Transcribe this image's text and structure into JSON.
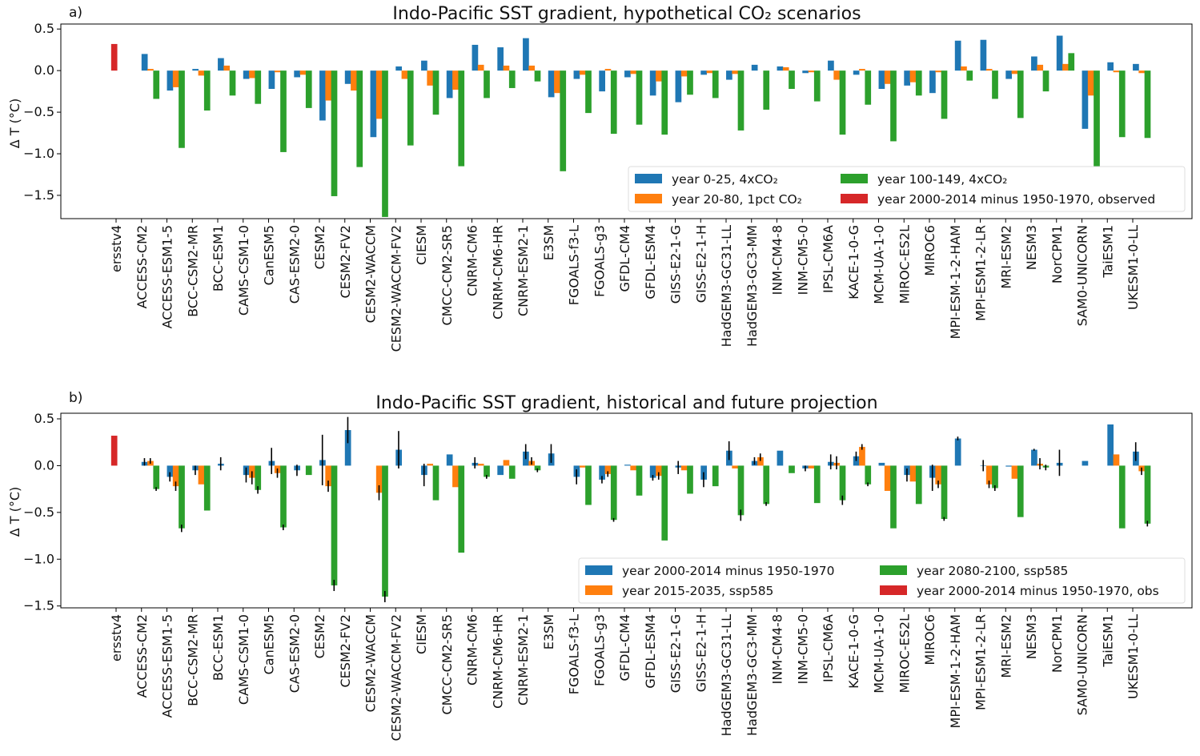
{
  "chart_data": [
    {
      "type": "bar",
      "panel_label": "a)",
      "title": "Indo-Pacific SST gradient, hypothetical CO₂ scenarios",
      "ylabel": "Δ T (°C)",
      "xlabel": "",
      "ylim": [
        -1.78,
        0.56
      ],
      "yticks": [
        0.5,
        0.0,
        -0.5,
        -1.0,
        -1.5
      ],
      "ytick_labels": [
        "0.5",
        "0.0",
        "−0.5",
        "−1.0",
        "−1.5"
      ],
      "grid": false,
      "legend_placement": "lower-right",
      "legend_columns": 2,
      "categories": [
        "ersstv4",
        "ACCESS-CM2",
        "ACCESS-ESM1-5",
        "BCC-CSM2-MR",
        "BCC-ESM1",
        "CAMS-CSM1-0",
        "CanESM5",
        "CAS-ESM2-0",
        "CESM2",
        "CESM2-FV2",
        "CESM2-WACCM",
        "CESM2-WACCM-FV2",
        "CIESM",
        "CMCC-CM2-SR5",
        "CNRM-CM6",
        "CNRM-CM6-HR",
        "CNRM-ESM2-1",
        "E3SM",
        "FGOALS-f3-L",
        "FGOALS-g3",
        "GFDL-CM4",
        "GFDL-ESM4",
        "GISS-E2-1-G",
        "GISS-E2-1-H",
        "HadGEM3-GC31-LL",
        "HadGEM3-GC3-MM",
        "INM-CM4-8",
        "INM-CM5-0",
        "IPSL-CM6A",
        "KACE-1-0-G",
        "MCM-UA-1-0",
        "MIROC-ES2L",
        "MIROC6",
        "MPI-ESM-1-2-HAM",
        "MPI-ESM1-2-LR",
        "MRI-ESM2",
        "NESM3",
        "NorCPM1",
        "SAM0-UNICORN",
        "TaiESM1",
        "UKESM1-0-LL"
      ],
      "series": [
        {
          "name": "year 0-25, 4xCO₂",
          "color": "#1f77b4",
          "values": [
            null,
            0.2,
            -0.24,
            0.02,
            0.15,
            -0.1,
            -0.22,
            -0.08,
            -0.6,
            -0.16,
            -0.8,
            0.05,
            0.12,
            -0.33,
            0.31,
            0.28,
            0.39,
            -0.32,
            -0.1,
            -0.25,
            -0.08,
            -0.3,
            -0.38,
            -0.05,
            -0.11,
            0.07,
            0.05,
            -0.03,
            0.12,
            -0.05,
            -0.22,
            -0.18,
            -0.27,
            0.36,
            0.37,
            -0.1,
            0.17,
            0.42,
            -0.7,
            0.1,
            0.08
          ]
        },
        {
          "name": "year 20-80, 1pct CO₂",
          "color": "#ff7f0e",
          "values": [
            null,
            0.02,
            -0.2,
            -0.06,
            0.06,
            -0.09,
            -0.02,
            -0.05,
            -0.36,
            -0.24,
            -0.58,
            -0.1,
            -0.18,
            -0.23,
            0.07,
            0.06,
            0.06,
            -0.27,
            -0.05,
            0.02,
            -0.04,
            -0.13,
            -0.07,
            -0.03,
            -0.04,
            null,
            0.04,
            -0.02,
            -0.11,
            0.02,
            -0.16,
            -0.14,
            -0.02,
            0.05,
            0.02,
            -0.04,
            0.07,
            0.08,
            -0.3,
            -0.02,
            -0.03
          ]
        },
        {
          "name": "year 100-149, 4xCO₂",
          "color": "#2ca02c",
          "values": [
            null,
            -0.34,
            -0.93,
            -0.48,
            -0.3,
            -0.4,
            -0.98,
            -0.45,
            -1.51,
            -1.16,
            -1.76,
            -0.9,
            -0.53,
            -1.15,
            -0.33,
            -0.21,
            -0.13,
            -1.21,
            -0.51,
            -0.76,
            -0.65,
            -0.77,
            -0.29,
            -0.33,
            -0.72,
            -0.47,
            -0.22,
            -0.37,
            -0.77,
            -0.41,
            -0.85,
            -0.3,
            -0.58,
            -0.12,
            -0.34,
            -0.57,
            -0.25,
            0.21,
            -1.23,
            -0.8,
            -0.81
          ]
        },
        {
          "name": "year 2000-2014 minus 1950-1970, observed",
          "color": "#d62728",
          "values": [
            0.32,
            null,
            null,
            null,
            null,
            null,
            null,
            null,
            null,
            null,
            null,
            null,
            null,
            null,
            null,
            null,
            null,
            null,
            null,
            null,
            null,
            null,
            null,
            null,
            null,
            null,
            null,
            null,
            null,
            null,
            null,
            null,
            null,
            null,
            null,
            null,
            null,
            null,
            null,
            null,
            null
          ]
        }
      ]
    },
    {
      "type": "bar",
      "panel_label": "b)",
      "title": "Indo-Pacific SST gradient, historical and future projection",
      "ylabel": "Δ T (°C)",
      "xlabel": "",
      "ylim": [
        -1.52,
        0.56
      ],
      "yticks": [
        0.5,
        0.0,
        -0.5,
        -1.0,
        -1.5
      ],
      "ytick_labels": [
        "0.5",
        "0.0",
        "−0.5",
        "−1.0",
        "−1.5"
      ],
      "grid": false,
      "legend_placement": "lower-right",
      "legend_columns": 2,
      "error_bars": true,
      "categories": [
        "ersstv4",
        "ACCESS-CM2",
        "ACCESS-ESM1-5",
        "BCC-CSM2-MR",
        "BCC-ESM1",
        "CAMS-CSM1-0",
        "CanESM5",
        "CAS-ESM2-0",
        "CESM2",
        "CESM2-FV2",
        "CESM2-WACCM",
        "CESM2-WACCM-FV2",
        "CIESM",
        "CMCC-CM2-SR5",
        "CNRM-CM6",
        "CNRM-CM6-HR",
        "CNRM-ESM2-1",
        "E3SM",
        "FGOALS-f3-L",
        "FGOALS-g3",
        "GFDL-CM4",
        "GFDL-ESM4",
        "GISS-E2-1-G",
        "GISS-E2-1-H",
        "HadGEM3-GC31-LL",
        "HadGEM3-GC3-MM",
        "INM-CM4-8",
        "INM-CM5-0",
        "IPSL-CM6A",
        "KACE-1-0-G",
        "MCM-UA-1-0",
        "MIROC-ES2L",
        "MIROC6",
        "MPI-ESM-1-2-HAM",
        "MPI-ESM1-2-LR",
        "MRI-ESM2",
        "NESM3",
        "NorCPM1",
        "SAM0-UNICORN",
        "TaiESM1",
        "UKESM1-0-LL"
      ],
      "series": [
        {
          "name": "year 2000-2014 minus 1950-1970",
          "color": "#1f77b4",
          "values": [
            null,
            0.04,
            -0.12,
            -0.05,
            0.02,
            -0.1,
            0.05,
            -0.05,
            0.06,
            0.38,
            null,
            0.17,
            -0.1,
            0.12,
            0.03,
            -0.1,
            0.15,
            0.13,
            -0.12,
            -0.15,
            0.01,
            -0.13,
            -0.02,
            -0.15,
            0.16,
            0.05,
            0.16,
            -0.03,
            0.04,
            0.1,
            0.03,
            -0.1,
            -0.13,
            0.29,
            0.0,
            -0.01,
            0.17,
            0.03,
            0.05,
            0.44,
            0.15
          ],
          "errors": [
            null,
            0.04,
            0.05,
            0.05,
            0.07,
            0.08,
            0.14,
            0.06,
            0.27,
            0.14,
            null,
            0.2,
            0.12,
            null,
            0.06,
            null,
            0.08,
            0.1,
            0.08,
            0.04,
            null,
            0.03,
            0.07,
            0.08,
            0.1,
            0.04,
            null,
            0.03,
            0.08,
            0.05,
            null,
            0.07,
            0.14,
            0.02,
            0.06,
            null,
            0.01,
            0.14,
            null,
            null,
            0.1
          ]
        },
        {
          "name": "year 2015-2035, ssp585",
          "color": "#ff7f0e",
          "values": [
            null,
            0.05,
            -0.22,
            -0.2,
            null,
            -0.13,
            -0.08,
            null,
            -0.22,
            null,
            -0.29,
            null,
            0.02,
            -0.23,
            0.02,
            0.06,
            0.05,
            null,
            -0.02,
            -0.09,
            -0.05,
            -0.11,
            -0.05,
            null,
            -0.03,
            0.09,
            null,
            -0.03,
            0.03,
            0.2,
            -0.27,
            -0.17,
            -0.2,
            null,
            -0.2,
            -0.14,
            0.02,
            null,
            null,
            0.12,
            -0.06
          ],
          "errors": [
            null,
            0.03,
            0.05,
            null,
            null,
            0.07,
            0.05,
            null,
            0.06,
            null,
            0.08,
            null,
            null,
            null,
            null,
            null,
            0.04,
            null,
            null,
            0.03,
            null,
            0.04,
            null,
            null,
            null,
            0.04,
            null,
            null,
            0.07,
            0.03,
            null,
            null,
            0.04,
            null,
            0.04,
            null,
            0.06,
            null,
            null,
            null,
            0.04
          ]
        },
        {
          "name": "year 2080-2100, ssp585",
          "color": "#2ca02c",
          "values": [
            null,
            -0.25,
            -0.67,
            -0.48,
            null,
            -0.26,
            -0.66,
            -0.1,
            -1.28,
            null,
            -1.4,
            null,
            -0.37,
            -0.93,
            -0.12,
            -0.14,
            -0.05,
            null,
            -0.42,
            -0.58,
            -0.32,
            -0.8,
            -0.3,
            -0.22,
            -0.53,
            -0.41,
            -0.08,
            -0.4,
            -0.37,
            -0.2,
            -0.67,
            -0.41,
            -0.57,
            null,
            -0.24,
            -0.55,
            -0.02,
            null,
            null,
            -0.67,
            -0.62
          ],
          "errors": [
            null,
            0.02,
            0.04,
            null,
            null,
            0.04,
            0.03,
            null,
            0.06,
            null,
            0.06,
            null,
            null,
            null,
            0.02,
            null,
            0.02,
            null,
            null,
            0.02,
            null,
            null,
            null,
            null,
            0.06,
            0.02,
            null,
            null,
            0.05,
            0.02,
            null,
            null,
            0.02,
            null,
            0.03,
            null,
            0.03,
            null,
            null,
            null,
            0.03
          ]
        },
        {
          "name": "year 2000-2014 minus 1950-1970, obs",
          "color": "#d62728",
          "values": [
            0.32,
            null,
            null,
            null,
            null,
            null,
            null,
            null,
            null,
            null,
            null,
            null,
            null,
            null,
            null,
            null,
            null,
            null,
            null,
            null,
            null,
            null,
            null,
            null,
            null,
            null,
            null,
            null,
            null,
            null,
            null,
            null,
            null,
            null,
            null,
            null,
            null,
            null,
            null,
            null,
            null
          ]
        }
      ]
    }
  ]
}
